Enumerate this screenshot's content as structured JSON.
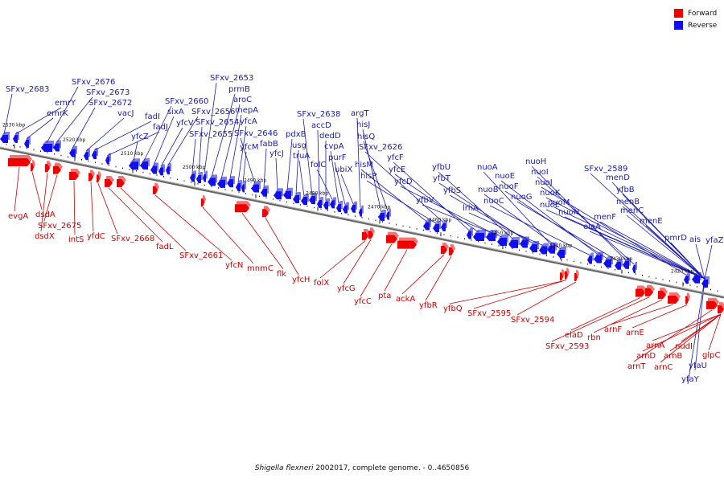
{
  "caption": {
    "organism": "Shigella flexneri",
    "rest": " 2002017, complete genome. - 0..4650856"
  },
  "legend": [
    {
      "label": "Forward",
      "color": "#ee0000"
    },
    {
      "label": "Reverse",
      "color": "#1010ee"
    }
  ],
  "colors": {
    "forward": "#ee0000",
    "reverse": "#1010ee",
    "forward_label": "#cc0000",
    "reverse_label": "#1a1aa6",
    "backbone": "#666666"
  },
  "kbp_ticks": [
    "2530 kbp",
    "2520 kbp",
    "2510 kbp",
    "2500 kbp",
    "2490 kbp",
    "2480 kbp",
    "2470 kbp",
    "2460 kbp",
    "2450 kbp",
    "2440 kbp",
    "2430 kbp",
    "2420 kbp"
  ],
  "genes_reverse": [
    "SFxv_2683",
    "emrY",
    "emrK",
    "SFxv_2676",
    "SFxv_2673",
    "SFxv_2672",
    "vacJ",
    "fadI",
    "fadJ",
    " yfcZ",
    "SFxv_2660",
    "sixA",
    "yfcV",
    "SFxv_2656",
    "SFxv_2655",
    "SFxv_2654",
    "SFxv_2653",
    "prmB",
    "aroC",
    "mepA",
    "yfcA",
    "yfcM",
    "SFxv_2646",
    "fabB",
    "yfcJ",
    "pdxB",
    "usg",
    "truA",
    "SFxv_2638",
    "accD",
    "dedD",
    "folC",
    "cvpA",
    "purF",
    "ubiX",
    "argT",
    "hisJ",
    "hisQ",
    "hisM",
    "hisP",
    "SFxv_2626",
    "yfcF",
    "yfcE",
    "yfcD",
    "yfbV",
    "yfbU",
    "yfbT",
    "yfbS",
    "lrhA",
    "nuoA",
    "nuoB",
    "nuoC",
    "nuoE",
    "nuoF",
    "nuoG",
    "nuoH",
    "nuoI",
    "nuoJ",
    "nuoK",
    "nuoL",
    "nuoM",
    "nuoN",
    "SFxv_2589",
    "elaA",
    "menF",
    "menD",
    "yfbB",
    "menB",
    "menC",
    "menE",
    "pmrD",
    "ais",
    "yfaZ",
    "yfaU",
    "yfaY"
  ],
  "genes_forward": [
    "evgA",
    "dsdA",
    "dsdX",
    "SFxv_2675",
    "intS",
    "yfdC",
    "SFxv_2668",
    "fadL",
    "SFxv_2661",
    "yfcN",
    "mnmC",
    "flk",
    "yfcH",
    "folX",
    "yfcG",
    "yfcC",
    "pta",
    "ackA",
    "yfbR",
    "yfbQ",
    "SFxv_2595",
    "SFxv_2594",
    "elaD",
    "SFxv_2593",
    "rbn",
    "arnF",
    "arnE",
    "arnT",
    "arnD",
    "arnA",
    "arnC",
    "arnB",
    "nudI",
    "glpC"
  ]
}
